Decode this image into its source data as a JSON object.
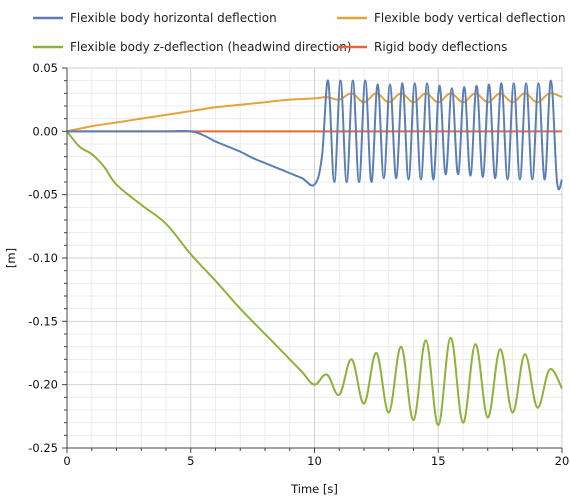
{
  "chart_data": {
    "type": "line",
    "xlabel": "Time [s]",
    "ylabel": "[m]",
    "xlim": [
      0,
      20
    ],
    "ylim": [
      -0.25,
      0.05
    ],
    "x_ticks": [
      "0",
      "5",
      "10",
      "15",
      "20"
    ],
    "y_ticks": [
      "0.05",
      "0.00",
      "-0.05",
      "-0.10",
      "-0.15",
      "-0.20",
      "-0.25"
    ],
    "grid": true,
    "legend_position": "top",
    "series": [
      {
        "name": "Flexible body horizontal deflection",
        "color": "#5b7fb4",
        "x": [
          0,
          1,
          2,
          3,
          4,
          5,
          5.5,
          6,
          6.5,
          7,
          7.5,
          8,
          8.5,
          9,
          9.5,
          10,
          10.3,
          10.55,
          10.8,
          11.05,
          11.3,
          11.55,
          11.8,
          12.05,
          12.3,
          12.55,
          12.8,
          13.05,
          13.3,
          13.55,
          13.8,
          14.05,
          14.3,
          14.55,
          14.8,
          15.05,
          15.3,
          15.55,
          15.8,
          16.05,
          16.3,
          16.55,
          16.8,
          17.05,
          17.3,
          17.55,
          17.8,
          18.05,
          18.3,
          18.55,
          18.8,
          19.05,
          19.3,
          19.55,
          19.8,
          20
        ],
        "y": [
          0,
          0,
          0,
          0,
          0,
          0,
          -0.003,
          -0.008,
          -0.012,
          -0.016,
          -0.021,
          -0.025,
          -0.029,
          -0.033,
          -0.037,
          -0.042,
          -0.02,
          0.04,
          -0.04,
          0.04,
          -0.04,
          0.04,
          -0.04,
          0.04,
          -0.04,
          0.037,
          -0.037,
          0.037,
          -0.037,
          0.038,
          -0.038,
          0.038,
          -0.038,
          0.038,
          -0.038,
          0.036,
          -0.034,
          0.034,
          -0.034,
          0.035,
          -0.035,
          0.036,
          -0.036,
          0.037,
          -0.037,
          0.038,
          -0.038,
          0.038,
          -0.038,
          0.038,
          -0.038,
          0.038,
          -0.038,
          0.04,
          -0.04,
          -0.038
        ]
      },
      {
        "name": "Flexible body vertical deflection",
        "color": "#e6a13b",
        "x": [
          0,
          1,
          2,
          3,
          4,
          5,
          6,
          7,
          8,
          9,
          10,
          10.5,
          11,
          11.5,
          12,
          12.5,
          13,
          13.5,
          14,
          14.5,
          15,
          15.5,
          16,
          16.5,
          17,
          17.5,
          18,
          18.5,
          19,
          19.5,
          20
        ],
        "y": [
          0,
          0.004,
          0.007,
          0.01,
          0.013,
          0.016,
          0.019,
          0.021,
          0.023,
          0.025,
          0.026,
          0.027,
          0.025,
          0.03,
          0.023,
          0.03,
          0.023,
          0.03,
          0.023,
          0.03,
          0.023,
          0.03,
          0.023,
          0.03,
          0.023,
          0.03,
          0.023,
          0.03,
          0.023,
          0.03,
          0.027
        ]
      },
      {
        "name": "Flexible body z-deflection (headwind direction)",
        "color": "#8fb23a",
        "x": [
          0,
          0.5,
          1,
          1.5,
          2,
          3,
          4,
          5,
          6,
          7,
          8,
          9,
          9.5,
          10,
          10.5,
          11,
          11.5,
          12,
          12.5,
          13,
          13.5,
          14,
          14.5,
          15,
          15.5,
          16,
          16.5,
          17,
          17.5,
          18,
          18.5,
          19,
          19.5,
          20
        ],
        "y": [
          0,
          -0.012,
          -0.018,
          -0.028,
          -0.042,
          -0.058,
          -0.073,
          -0.097,
          -0.118,
          -0.14,
          -0.16,
          -0.18,
          -0.19,
          -0.2,
          -0.192,
          -0.208,
          -0.18,
          -0.215,
          -0.175,
          -0.222,
          -0.17,
          -0.228,
          -0.165,
          -0.232,
          -0.163,
          -0.23,
          -0.168,
          -0.226,
          -0.172,
          -0.222,
          -0.176,
          -0.218,
          -0.188,
          -0.203
        ]
      },
      {
        "name": "Rigid body deflections",
        "color": "#e2673b",
        "x": [
          0,
          20
        ],
        "y": [
          0,
          0
        ]
      }
    ]
  }
}
